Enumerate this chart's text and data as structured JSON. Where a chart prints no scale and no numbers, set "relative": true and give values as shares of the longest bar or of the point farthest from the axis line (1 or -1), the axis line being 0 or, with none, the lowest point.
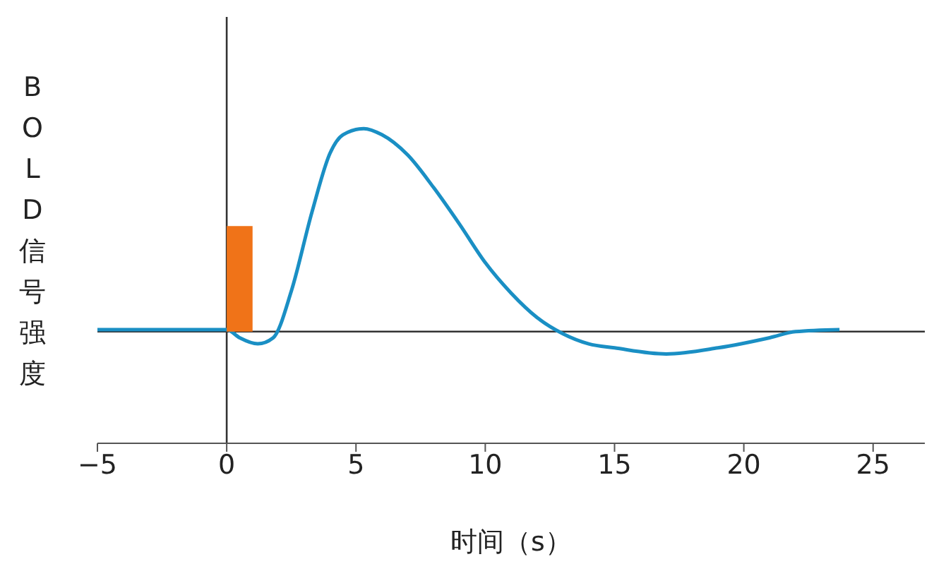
{
  "chart_data": {
    "type": "line",
    "xlabel": "时间（s）",
    "ylabel": "BOLD信号强度",
    "relative": true,
    "xlim": [
      -5,
      27
    ],
    "xticks": [
      {
        "value": -5,
        "label": "−5"
      },
      0,
      5,
      10,
      15,
      20,
      25
    ],
    "tick_labels": "x",
    "grid": false,
    "legend": false,
    "marker": "none",
    "line_style": "solid",
    "ref_lines": [
      {
        "axis": "x",
        "value": 0,
        "color": "#333333"
      }
    ],
    "series": [
      {
        "type": "bar",
        "color": "#f07318",
        "x": [
          0.5
        ],
        "values": [
          0.52
        ]
      },
      {
        "color": "#1a8fc4",
        "x": [
          -5,
          0,
          0.5,
          1.2,
          1.8,
          2.5,
          3.3,
          4,
          4.5,
          5.3,
          6,
          7,
          8,
          9,
          10,
          11,
          12,
          13,
          14,
          15,
          17,
          19,
          21,
          22,
          23.7
        ],
        "values": [
          0.01,
          0.01,
          -0.03,
          -0.06,
          -0.03,
          0.2,
          0.59,
          0.88,
          0.97,
          1.0,
          0.97,
          0.87,
          0.71,
          0.53,
          0.34,
          0.19,
          0.07,
          -0.01,
          -0.06,
          -0.08,
          -0.11,
          -0.08,
          -0.03,
          0,
          0.01
        ]
      }
    ]
  }
}
